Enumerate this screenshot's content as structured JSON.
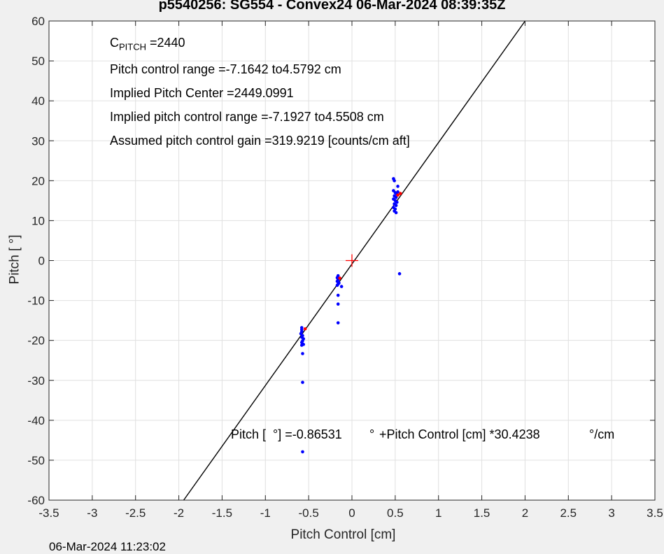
{
  "chart_data": {
    "type": "scatter",
    "title": "p5540256: SG554 - Convex24 06-Mar-2024 08:39:35Z",
    "xlabel": "Pitch Control [cm]",
    "ylabel": "Pitch [  °]",
    "xlim": [
      -3.5,
      3.5
    ],
    "ylim": [
      -60,
      60
    ],
    "xticks": [
      -3.5,
      -3,
      -2.5,
      -2,
      -1.5,
      -1,
      -0.5,
      0,
      0.5,
      1,
      1.5,
      2,
      2.5,
      3,
      3.5
    ],
    "xtick_labels": [
      "-3.5",
      "-3",
      "-2.5",
      "-2",
      "-1.5",
      "-1",
      "-0.5",
      "0",
      "0.5",
      "1",
      "1.5",
      "2",
      "2.5",
      "3",
      "3.5"
    ],
    "yticks": [
      -60,
      -50,
      -40,
      -30,
      -20,
      -10,
      0,
      10,
      20,
      30,
      40,
      50,
      60
    ],
    "ytick_labels": [
      "-60",
      "-50",
      "-40",
      "-30",
      "-20",
      "-10",
      "0",
      "10",
      "20",
      "30",
      "40",
      "50",
      "60"
    ],
    "grid": true,
    "fit_line": {
      "intercept": -0.86531,
      "slope": 30.4238
    },
    "center_marker": {
      "x": 0,
      "y": 0,
      "color": "#ff0000"
    },
    "series": [
      {
        "color": "#0000ff",
        "points": [
          [
            -0.58,
            -16.8
          ],
          [
            -0.58,
            -17.3
          ],
          [
            -0.58,
            -17.8
          ],
          [
            -0.59,
            -18.3
          ],
          [
            -0.57,
            -18.8
          ],
          [
            -0.58,
            -19.2
          ],
          [
            -0.56,
            -19.6
          ],
          [
            -0.57,
            -20.1
          ],
          [
            -0.58,
            -20.5
          ],
          [
            -0.57,
            -20.9
          ],
          [
            -0.58,
            -21.2
          ],
          [
            -0.56,
            -21.0
          ],
          [
            -0.57,
            -23.3
          ],
          [
            -0.57,
            -30.5
          ],
          [
            -0.57,
            -47.9
          ],
          [
            -0.16,
            -3.8
          ],
          [
            -0.17,
            -4.3
          ],
          [
            -0.16,
            -4.8
          ],
          [
            -0.17,
            -5.2
          ],
          [
            -0.15,
            -5.6
          ],
          [
            -0.16,
            -5.9
          ],
          [
            -0.17,
            -6.2
          ],
          [
            -0.12,
            -6.5
          ],
          [
            -0.16,
            -8.7
          ],
          [
            -0.16,
            -10.9
          ],
          [
            -0.16,
            -15.6
          ],
          [
            0.48,
            20.5
          ],
          [
            0.49,
            20.0
          ],
          [
            0.53,
            18.6
          ],
          [
            0.48,
            17.5
          ],
          [
            0.5,
            17.0
          ],
          [
            0.52,
            16.6
          ],
          [
            0.49,
            16.2
          ],
          [
            0.51,
            15.8
          ],
          [
            0.48,
            15.4
          ],
          [
            0.5,
            15.0
          ],
          [
            0.52,
            14.6
          ],
          [
            0.49,
            14.2
          ],
          [
            0.51,
            13.8
          ],
          [
            0.48,
            13.3
          ],
          [
            0.5,
            12.9
          ],
          [
            0.49,
            12.4
          ],
          [
            0.51,
            12.0
          ],
          [
            0.52,
            16.9
          ],
          [
            0.53,
            17.2
          ],
          [
            0.55,
            -3.3
          ]
        ]
      },
      {
        "color": "#ff0000",
        "points": [
          [
            -0.54,
            -17.1
          ],
          [
            -0.14,
            -4.4
          ],
          [
            0.56,
            16.8
          ],
          [
            0.53,
            16.4
          ]
        ]
      }
    ]
  },
  "annotations": {
    "c_pitch_main": "C",
    "c_pitch_sub": "PITCH",
    "c_pitch_val": " =2440",
    "line1": "Pitch control range =-7.1642 to4.5792 cm",
    "line2": "Implied Pitch Center =2449.0991",
    "line3": "Implied pitch control range =-7.1927 to4.5508 cm",
    "line4": "Assumed pitch control gain =319.9219 [counts/cm aft]",
    "fit_a": "Pitch [  °] =-0.86531",
    "fit_b": "°",
    "fit_c": "+Pitch Control [cm] *30.4238",
    "fit_d": "°/cm"
  },
  "timestamp": "06-Mar-2024 11:23:02"
}
